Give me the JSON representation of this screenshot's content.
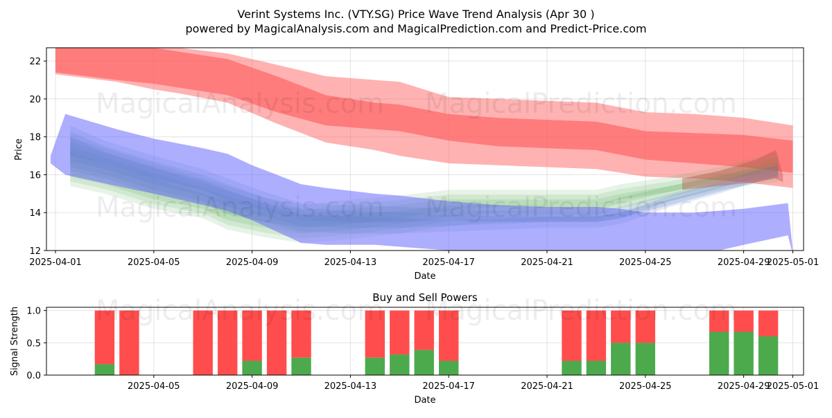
{
  "chart_data": [
    {
      "type": "area",
      "title_line1": "Verint Systems Inc. (VTY.SG) Price Wave Trend Analysis (Apr 30 )",
      "title_line2": "powered by MagicalAnalysis.com and MagicalPrediction.com and Predict-Price.com",
      "xlabel": "Date",
      "ylabel": "Price",
      "ylim": [
        12,
        22.7
      ],
      "yticks": [
        "12",
        "14",
        "16",
        "18",
        "20",
        "22"
      ],
      "xticks": [
        "2025-04-01",
        "2025-04-05",
        "2025-04-09",
        "2025-04-13",
        "2025-04-17",
        "2025-04-21",
        "2025-04-25",
        "2025-04-29",
        "2025-05-01"
      ],
      "grid": true,
      "watermarks": [
        "MagicalAnalysis.com",
        "MagicalPrediction.com"
      ],
      "series": [
        {
          "name": "sell-wave-outer",
          "color": "#ff6666",
          "days": [
            0,
            2.5,
            4,
            5,
            7,
            9,
            11,
            13,
            14,
            16,
            18,
            20,
            22,
            24,
            26,
            28,
            30
          ],
          "upper": [
            22.8,
            22.8,
            22.8,
            22.7,
            22.4,
            21.8,
            21.2,
            21.0,
            20.9,
            20.1,
            20.0,
            19.9,
            19.8,
            19.3,
            19.2,
            19.0,
            18.6
          ],
          "lower": [
            21.3,
            20.9,
            20.5,
            20.3,
            19.8,
            18.7,
            17.7,
            17.3,
            17.0,
            16.6,
            16.5,
            16.4,
            16.3,
            15.9,
            15.8,
            15.6,
            15.3
          ]
        },
        {
          "name": "sell-wave-inner",
          "color": "#ff5050",
          "days": [
            0,
            2.5,
            4,
            5,
            7,
            9,
            11,
            13,
            14,
            16,
            18,
            20,
            22,
            24,
            26,
            28,
            30
          ],
          "upper": [
            22.7,
            22.7,
            22.7,
            22.5,
            22.1,
            21.2,
            20.2,
            19.8,
            19.7,
            19.2,
            19.0,
            18.9,
            18.8,
            18.3,
            18.2,
            18.1,
            17.8
          ],
          "lower": [
            21.4,
            21.0,
            20.8,
            20.6,
            20.2,
            19.3,
            18.6,
            18.4,
            18.3,
            17.8,
            17.5,
            17.4,
            17.3,
            16.8,
            16.6,
            16.4,
            16.1
          ]
        },
        {
          "name": "buy-wave",
          "color": "#4fa84f",
          "days": [
            0.6,
            2,
            4,
            6,
            7,
            8.5,
            10,
            12,
            14,
            16,
            18,
            20,
            22,
            23,
            25,
            27,
            28.5,
            29.4
          ],
          "upper": [
            18.0,
            17.4,
            16.6,
            15.8,
            15.4,
            14.8,
            14.4,
            14.7,
            14.9,
            15.2,
            15.2,
            15.2,
            15.2,
            15.5,
            15.9,
            16.4,
            16.9,
            17.2
          ],
          "lower": [
            15.4,
            15.0,
            14.2,
            13.7,
            13.1,
            12.7,
            12.4,
            12.6,
            12.9,
            13.3,
            13.5,
            13.6,
            13.6,
            14.0,
            14.6,
            15.2,
            15.5,
            15.6
          ]
        },
        {
          "name": "trend-wave",
          "color": "#6b6bff",
          "days": [
            -0.2,
            0.4,
            2.5,
            4,
            6,
            7,
            8,
            9,
            10,
            11,
            13,
            14,
            16,
            18,
            20,
            22,
            23,
            24,
            26,
            27,
            28,
            29.8,
            30
          ],
          "upper": [
            17.0,
            19.2,
            18.4,
            17.9,
            17.4,
            17.1,
            16.5,
            16.0,
            15.5,
            15.3,
            15.0,
            14.9,
            14.6,
            14.4,
            14.3,
            14.3,
            14.2,
            14.0,
            14.0,
            14.1,
            14.2,
            14.5,
            12.0
          ],
          "lower": [
            16.6,
            16.0,
            15.4,
            15.0,
            14.4,
            14.1,
            13.6,
            13.0,
            12.4,
            12.3,
            12.3,
            12.2,
            12.0,
            11.8,
            11.8,
            11.8,
            11.8,
            11.8,
            11.8,
            12.0,
            12.3,
            12.8,
            11.8
          ]
        },
        {
          "name": "blue-core-wave",
          "color": "#5a7acc",
          "days": [
            0.6,
            2,
            4,
            6,
            7,
            8.5,
            10,
            12,
            14,
            16,
            18,
            20,
            22,
            23,
            25,
            27,
            28.5,
            29.4
          ],
          "upper": [
            18.6,
            17.8,
            17.0,
            16.3,
            15.8,
            15.1,
            14.5,
            14.4,
            14.3,
            14.2,
            14.1,
            14.1,
            14.1,
            14.3,
            15.0,
            15.7,
            16.2,
            16.5
          ],
          "lower": [
            16.4,
            16.0,
            15.2,
            14.6,
            14.0,
            13.5,
            13.0,
            12.9,
            12.9,
            13.0,
            13.1,
            13.2,
            13.2,
            13.4,
            14.3,
            15.0,
            15.6,
            15.9
          ]
        },
        {
          "name": "red-end-wave",
          "color": "#c0504d",
          "days": [
            25.5,
            27,
            28.5,
            29.3,
            29.6
          ],
          "upper": [
            15.8,
            16.2,
            16.8,
            17.3,
            16.0
          ],
          "lower": [
            15.2,
            15.4,
            15.6,
            15.8,
            15.6
          ]
        }
      ]
    },
    {
      "type": "bar",
      "title": "Buy and Sell Powers",
      "xlabel": "Date",
      "ylabel": "Signal Strength",
      "ylim": [
        0,
        1.05
      ],
      "yticks": [
        "0.0",
        "0.5",
        "1.0"
      ],
      "xticks": [
        "2025-04-05",
        "2025-04-09",
        "2025-04-13",
        "2025-04-17",
        "2025-04-21",
        "2025-04-25",
        "2025-04-29",
        "2025-05-01"
      ],
      "buy_color": "#4caa4c",
      "sell_color": "#ff4d4d",
      "bars": [
        {
          "date": "2025-04-03",
          "buy": 0.17,
          "sell": 0.83
        },
        {
          "date": "2025-04-04",
          "buy": 0.0,
          "sell": 1.0
        },
        {
          "date": "2025-04-07",
          "buy": 0.0,
          "sell": 1.0
        },
        {
          "date": "2025-04-08",
          "buy": 0.0,
          "sell": 1.0
        },
        {
          "date": "2025-04-09",
          "buy": 0.22,
          "sell": 0.78
        },
        {
          "date": "2025-04-10",
          "buy": 0.0,
          "sell": 1.0
        },
        {
          "date": "2025-04-11",
          "buy": 0.27,
          "sell": 0.73
        },
        {
          "date": "2025-04-14",
          "buy": 0.27,
          "sell": 0.73
        },
        {
          "date": "2025-04-15",
          "buy": 0.32,
          "sell": 0.68
        },
        {
          "date": "2025-04-16",
          "buy": 0.39,
          "sell": 0.61
        },
        {
          "date": "2025-04-17",
          "buy": 0.22,
          "sell": 0.78
        },
        {
          "date": "2025-04-22",
          "buy": 0.22,
          "sell": 0.78
        },
        {
          "date": "2025-04-23",
          "buy": 0.22,
          "sell": 0.78
        },
        {
          "date": "2025-04-24",
          "buy": 0.5,
          "sell": 0.5
        },
        {
          "date": "2025-04-25",
          "buy": 0.5,
          "sell": 0.5
        },
        {
          "date": "2025-04-28",
          "buy": 0.67,
          "sell": 0.33
        },
        {
          "date": "2025-04-29",
          "buy": 0.67,
          "sell": 0.33
        },
        {
          "date": "2025-04-30",
          "buy": 0.6,
          "sell": 0.4
        }
      ]
    }
  ]
}
